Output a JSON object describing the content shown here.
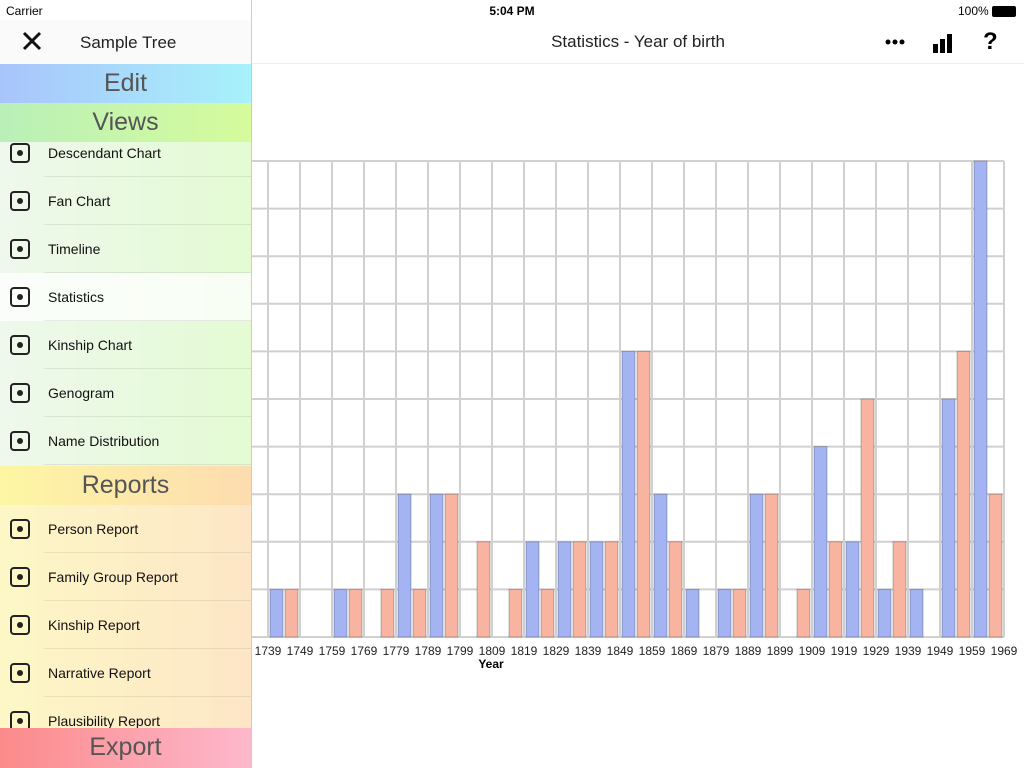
{
  "status_bar": {
    "carrier": "Carrier",
    "time": "5:04 PM",
    "battery": "100%"
  },
  "sidebar": {
    "title": "Sample Tree",
    "edit": "Edit",
    "views": {
      "heading": "Views",
      "items": [
        "Descendant Chart",
        "Fan Chart",
        "Timeline",
        "Statistics",
        "Kinship Chart",
        "Genogram",
        "Name Distribution"
      ]
    },
    "reports": {
      "heading": "Reports",
      "items": [
        "Person Report",
        "Family Group Report",
        "Kinship Report",
        "Narrative Report",
        "Plausibility Report"
      ]
    },
    "export": "Export"
  },
  "header": {
    "title": "Statistics - Year of birth"
  },
  "chart_data": {
    "type": "histogram",
    "x_label": "Year",
    "bins": [
      1739,
      1749,
      1759,
      1769,
      1779,
      1789,
      1799,
      1809,
      1819,
      1829,
      1839,
      1849,
      1859,
      1869,
      1879,
      1889,
      1899,
      1909,
      1919,
      1929,
      1939,
      1949,
      1959,
      1969
    ],
    "series": [
      {
        "color": "#a4b4f2",
        "values": [
          1,
          0,
          1,
          0,
          3,
          3,
          0,
          0,
          2,
          2,
          2,
          6,
          3,
          1,
          1,
          3,
          0,
          4,
          2,
          1,
          1,
          5,
          10
        ]
      },
      {
        "color": "#f8b4a0",
        "values": [
          1,
          0,
          1,
          1,
          1,
          3,
          2,
          1,
          1,
          2,
          2,
          6,
          2,
          0,
          1,
          3,
          1,
          2,
          5,
          2,
          0,
          6,
          3
        ]
      }
    ],
    "ylim": [
      0,
      10
    ],
    "yticks": [
      0,
      1,
      2,
      3,
      4,
      5,
      6,
      7,
      8,
      9,
      10
    ],
    "grid": true
  }
}
